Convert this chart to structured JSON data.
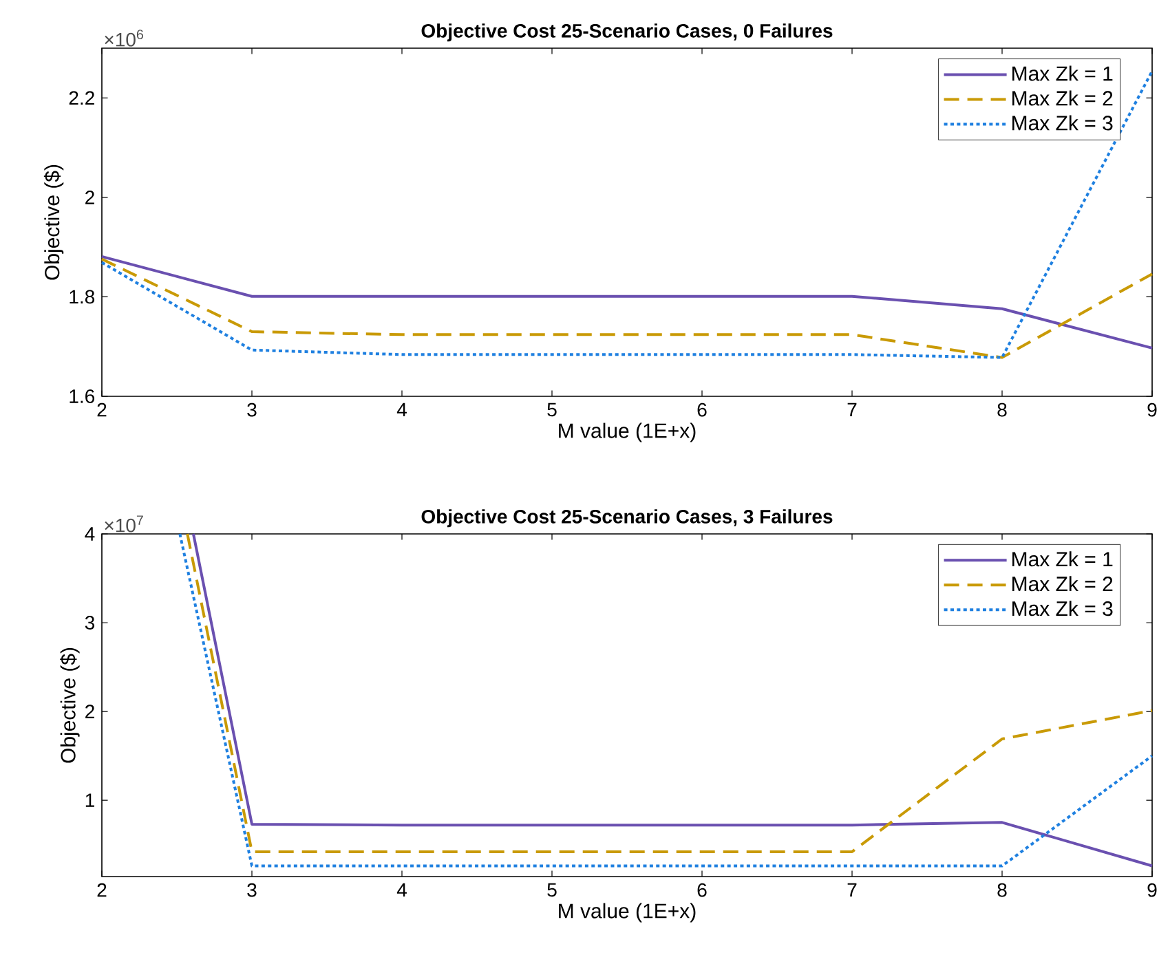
{
  "chart_data": [
    {
      "type": "line",
      "title": "Objective Cost 25-Scenario Cases, 0 Failures",
      "xlabel": "M value (1E+x)",
      "ylabel": "Objective ($)",
      "annotations": [
        "×10$^{6}$"
      ],
      "x": [
        2,
        3,
        4,
        5,
        6,
        7,
        8,
        9
      ],
      "xlim": [
        2,
        9
      ],
      "xticks": [
        2,
        3,
        4,
        5,
        6,
        7,
        8,
        9
      ],
      "ylim": [
        1.6,
        2.3
      ],
      "yticks": [
        1.6,
        1.8,
        2,
        2.2
      ],
      "legend": "top right",
      "grid": false,
      "series": [
        {
          "name": "Max Zk = 1",
          "color": "#6a50b0",
          "line_style": "solid",
          "values": [
            1.881,
            1.801,
            1.801,
            1.801,
            1.801,
            1.801,
            1.776,
            1.697
          ]
        },
        {
          "name": "Max Zk = 2",
          "color": "#c99a06",
          "line_style": "dashed",
          "values": [
            1.876,
            1.73,
            1.724,
            1.724,
            1.724,
            1.724,
            1.678,
            1.846
          ]
        },
        {
          "name": "Max Zk = 3",
          "color": "#1f80e0",
          "line_style": "dotted",
          "values": [
            1.869,
            1.693,
            1.684,
            1.684,
            1.684,
            1.684,
            1.678,
            2.254
          ]
        }
      ]
    },
    {
      "type": "line",
      "title": "Objective Cost 25-Scenario Cases, 3 Failures",
      "xlabel": "M value (1E+x)",
      "ylabel": "Objective ($)",
      "annotations": [
        "×10$^{7}$"
      ],
      "xlim": [
        2,
        9
      ],
      "xticks": [
        2,
        3,
        4,
        5,
        6,
        7,
        8,
        9
      ],
      "ylim": [
        0.14,
        4
      ],
      "yticks": [
        1,
        2,
        3,
        4
      ],
      "legend": "top right",
      "grid": false,
      "series": [
        {
          "name": "Max Zk = 1",
          "color": "#6a50b0",
          "line_style": "solid",
          "x": [
            2.61,
            3,
            4,
            5,
            6,
            7,
            8,
            9
          ],
          "values": [
            4,
            0.73,
            0.72,
            0.72,
            0.72,
            0.72,
            0.75,
            0.26
          ]
        },
        {
          "name": "Max Zk = 2",
          "color": "#c99a06",
          "line_style": "dashed",
          "x": [
            2.57,
            3,
            4,
            5,
            6,
            7,
            8,
            9
          ],
          "values": [
            4,
            0.42,
            0.42,
            0.42,
            0.42,
            0.42,
            1.69,
            2.01
          ]
        },
        {
          "name": "Max Zk = 3",
          "color": "#1f80e0",
          "line_style": "dotted",
          "x": [
            2.52,
            3,
            4,
            5,
            6,
            7,
            8,
            9
          ],
          "values": [
            4,
            0.26,
            0.26,
            0.26,
            0.26,
            0.26,
            0.26,
            1.5
          ]
        }
      ]
    }
  ]
}
